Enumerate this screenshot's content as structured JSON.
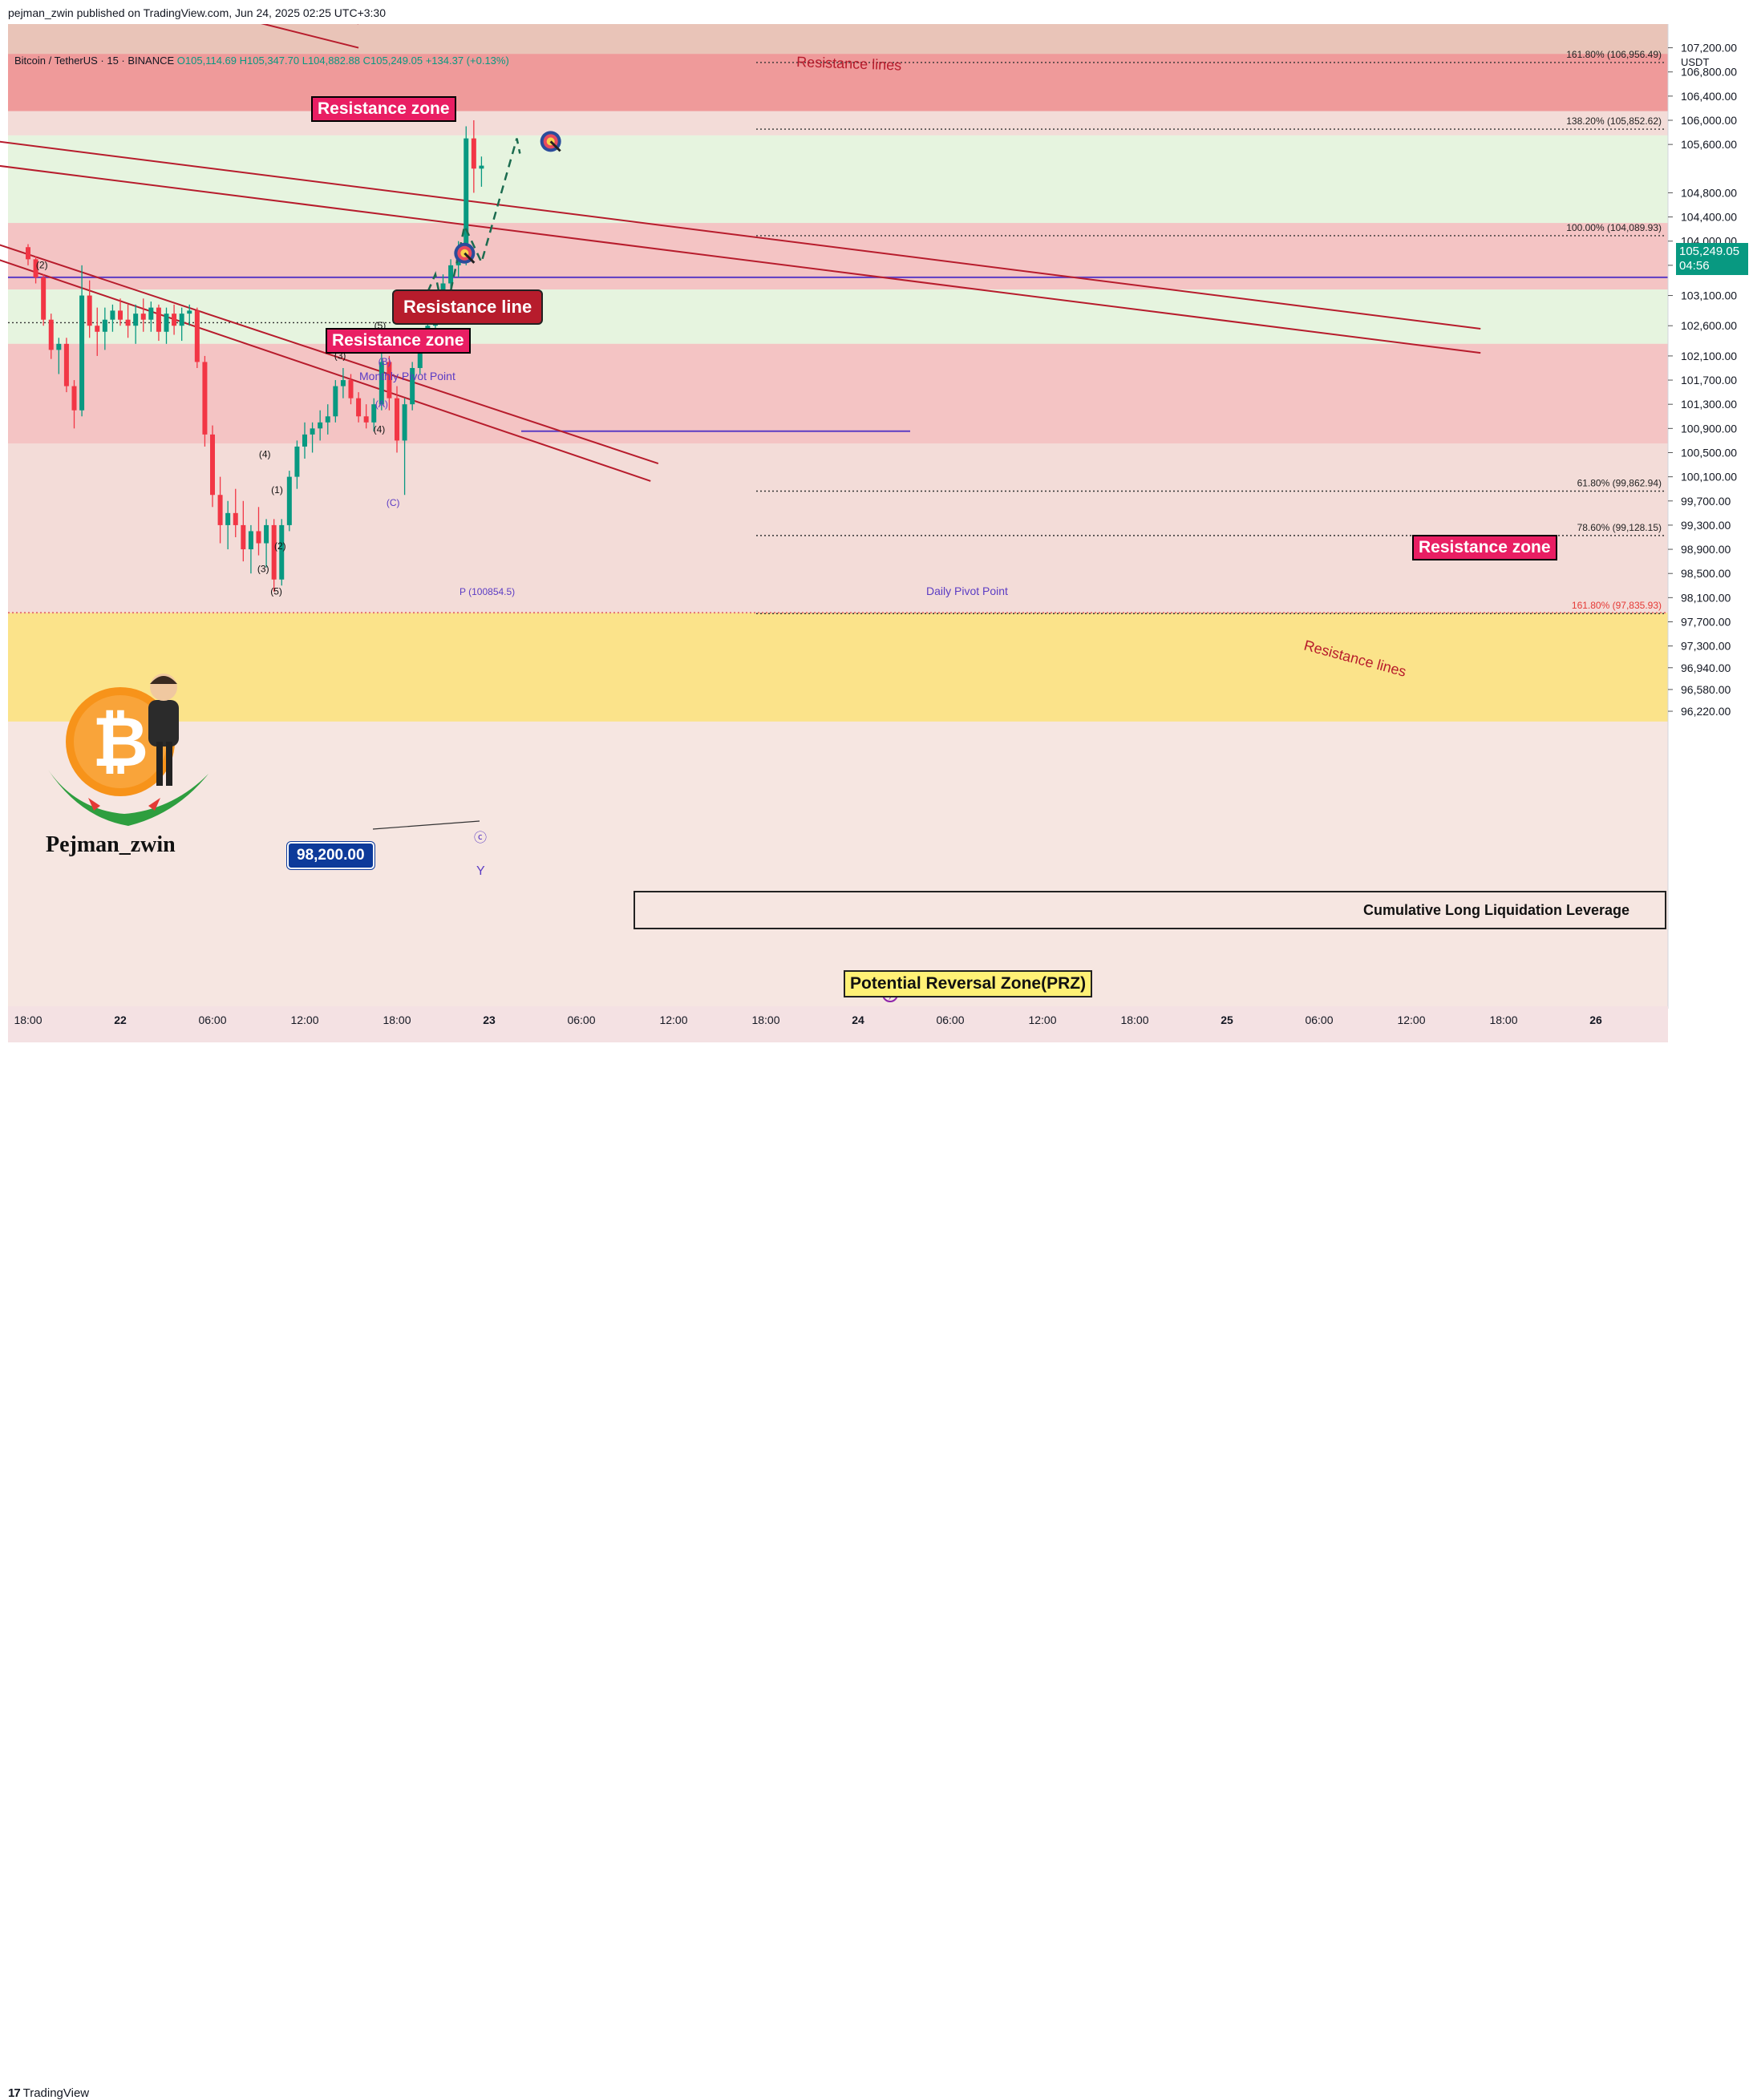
{
  "header": {
    "published": "pejman_zwin published on TradingView.com, Jun 24, 2025 02:25 UTC+3:30"
  },
  "legend": {
    "symbol": "Bitcoin / TetherUS · 15 · BINANCE",
    "open": "O105,114.69",
    "high": "H105,347.70",
    "low": "L104,882.88",
    "close": "C105,249.05",
    "change": "+134.37 (+0.13%)"
  },
  "axis": {
    "currency": "USDT",
    "price_ticks": [
      "107,200.00",
      "106,800.00",
      "106,400.00",
      "106,000.00",
      "105,600.00",
      "104,800.00",
      "104,400.00",
      "104,000.00",
      "103,600.00",
      "103,100.00",
      "102,600.00",
      "102,100.00",
      "101,700.00",
      "101,300.00",
      "100,900.00",
      "100,500.00",
      "100,100.00",
      "99,700.00",
      "99,300.00",
      "98,900.00",
      "98,500.00",
      "98,100.00",
      "97,700.00",
      "97,300.00",
      "96,940.00",
      "96,580.00",
      "96,220.00"
    ],
    "time_ticks": [
      "18:00",
      "22",
      "06:00",
      "12:00",
      "18:00",
      "23",
      "06:00",
      "12:00",
      "18:00",
      "24",
      "06:00",
      "12:00",
      "18:00",
      "25",
      "06:00",
      "12:00",
      "18:00",
      "26"
    ]
  },
  "last_price": {
    "value": "105,249.05",
    "countdown": "04:56"
  },
  "annotations": {
    "resistance_zone_top": "Resistance zone",
    "resistance_zone_mid": "Resistance zone",
    "resistance_zone_right": "Resistance zone",
    "resistance_line_box": "Resistance line",
    "resistance_lines_top": "Resistance lines",
    "resistance_lines_bottom": "Resistance lines",
    "monthly_pivot": "Monthly Pivot Point",
    "daily_pivot": "Daily Pivot Point",
    "daily_pivot_value": "P (100854.5)",
    "price_tag": "98,200.00",
    "cumulative": "Cumulative Long Liquidation Leverage",
    "prz": "Potential Reversal Zone(PRZ)",
    "author": "Pejman_zwin",
    "bitcoin_symbol": "₿",
    "footer": "TradingView",
    "footer_mark": "17",
    "wave_y": "Y",
    "wave_c_circle": "ⓒ"
  },
  "fib_labels": [
    {
      "label": "161.80% (106,956.49)",
      "price": 106956.49
    },
    {
      "label": "138.20% (105,852.62)",
      "price": 105852.62
    },
    {
      "label": "100.00% (104,089.93)",
      "price": 104089.93
    },
    {
      "label": "61.80% (99,862.94)",
      "price": 99862.94
    },
    {
      "label": "78.60% (99,128.15)",
      "price": 99128.15
    },
    {
      "label": "161.80% (97,835.93)",
      "price": 97835.93
    }
  ],
  "wave_labels": [
    {
      "text": "(1)",
      "price": 100800,
      "t": -9
    },
    {
      "text": "(2)",
      "price": 103550,
      "t": -5.1
    },
    {
      "text": "(4)",
      "price": 100420,
      "t": 9.4
    },
    {
      "text": "(3)",
      "price": 98520,
      "t": 9.3
    },
    {
      "text": "(1)",
      "price": 99830,
      "t": 10.2
    },
    {
      "text": "(2)",
      "price": 98900,
      "t": 10.4
    },
    {
      "text": "(5)",
      "price": 98150,
      "t": 10.15
    },
    {
      "text": "(3)",
      "price": 102050,
      "t": 14.3
    },
    {
      "text": "(5)",
      "price": 102550,
      "t": 16.9
    },
    {
      "text": "(4)",
      "price": 100830,
      "t": 16.85
    },
    {
      "text": "(B)",
      "price": 101950,
      "t": 17.2
    },
    {
      "text": "(A)",
      "price": 101250,
      "t": 17.0
    },
    {
      "text": "(C)",
      "price": 99620,
      "t": 17.75
    }
  ],
  "colors": {
    "up": "#089981",
    "down": "#f23645",
    "resistance_line": "#b71c2c",
    "pivot": "#5b3cc4",
    "zone_red": "#ef9a9a",
    "zone_pink": "#f4c4c4",
    "zone_green": "#e6f4df",
    "zone_yellow": "#fbe38a"
  },
  "chart_data": {
    "type": "candlestick",
    "x_unit": "hours from Jun 22 00:00",
    "zones": [
      {
        "from": 107100,
        "to": 106150,
        "kind": "resistance"
      },
      {
        "from": 106150,
        "to": 105750,
        "kind": "light"
      },
      {
        "from": 105750,
        "to": 104300,
        "kind": "green"
      },
      {
        "from": 104300,
        "to": 103200,
        "kind": "resistance-light"
      },
      {
        "from": 103200,
        "to": 102300,
        "kind": "green"
      },
      {
        "from": 102300,
        "to": 100650,
        "kind": "resistance-light"
      },
      {
        "from": 100650,
        "to": 97850,
        "kind": "light"
      },
      {
        "from": 97850,
        "to": 96050,
        "kind": "prz"
      }
    ],
    "pivots": {
      "monthly": 103400,
      "daily": 100854.5
    },
    "projection": [
      {
        "t": 19.3,
        "p": 102750
      },
      {
        "t": 20.5,
        "p": 103450
      },
      {
        "t": 21.1,
        "p": 102700
      },
      {
        "t": 22.4,
        "p": 104250
      },
      {
        "t": 23.5,
        "p": 103650
      },
      {
        "t": 25.8,
        "p": 105700
      },
      {
        "t": 26.0,
        "p": 105450
      }
    ],
    "targets": [
      {
        "t": 22.4,
        "p": 103800
      },
      {
        "t": 28.0,
        "p": 105650
      }
    ],
    "candles_ohlc_hourly": [
      [
        -6,
        103900,
        103950,
        103600,
        103700
      ],
      [
        -5.5,
        103700,
        103750,
        103300,
        103400
      ],
      [
        -5,
        103400,
        103450,
        102600,
        102700
      ],
      [
        -4.5,
        102700,
        102800,
        102050,
        102200
      ],
      [
        -4,
        102200,
        102400,
        101800,
        102300
      ],
      [
        -3.5,
        102300,
        102400,
        101500,
        101600
      ],
      [
        -3,
        101600,
        101700,
        100900,
        101200
      ],
      [
        -2.5,
        101200,
        103600,
        101100,
        103100
      ],
      [
        -2,
        103100,
        103350,
        102400,
        102600
      ],
      [
        -1.5,
        102600,
        102900,
        102100,
        102500
      ],
      [
        -1,
        102500,
        102900,
        102200,
        102700
      ],
      [
        -0.5,
        102700,
        102950,
        102500,
        102850
      ],
      [
        0,
        102850,
        103050,
        102600,
        102700
      ],
      [
        0.5,
        102700,
        102950,
        102400,
        102600
      ],
      [
        1,
        102600,
        102950,
        102300,
        102800
      ],
      [
        1.5,
        102800,
        103050,
        102500,
        102700
      ],
      [
        2,
        102700,
        103000,
        102500,
        102900
      ],
      [
        2.5,
        102900,
        102950,
        102350,
        102500
      ],
      [
        3,
        102500,
        102900,
        102300,
        102800
      ],
      [
        3.5,
        102800,
        102950,
        102450,
        102600
      ],
      [
        4,
        102600,
        102900,
        102350,
        102800
      ],
      [
        4.5,
        102800,
        102950,
        102600,
        102850
      ],
      [
        5,
        102850,
        102900,
        101900,
        102000
      ],
      [
        5.5,
        102000,
        102100,
        100600,
        100800
      ],
      [
        6,
        100800,
        100950,
        99600,
        99800
      ],
      [
        6.5,
        99800,
        100100,
        99000,
        99300
      ],
      [
        7,
        99300,
        99700,
        98900,
        99500
      ],
      [
        7.5,
        99500,
        99900,
        99100,
        99300
      ],
      [
        8,
        99300,
        99700,
        98700,
        98900
      ],
      [
        8.5,
        98900,
        99300,
        98500,
        99200
      ],
      [
        9,
        99200,
        99600,
        98800,
        99000
      ],
      [
        9.5,
        99000,
        99400,
        98600,
        99300
      ],
      [
        10,
        99300,
        99400,
        98200,
        98400
      ],
      [
        10.5,
        98400,
        99400,
        98300,
        99300
      ],
      [
        11,
        99300,
        100200,
        99200,
        100100
      ],
      [
        11.5,
        100100,
        100700,
        99900,
        100600
      ],
      [
        12,
        100600,
        101000,
        100400,
        100800
      ],
      [
        12.5,
        100800,
        101000,
        100500,
        100900
      ],
      [
        13,
        100900,
        101200,
        100700,
        101000
      ],
      [
        13.5,
        101000,
        101300,
        100800,
        101100
      ],
      [
        14,
        101100,
        101700,
        101000,
        101600
      ],
      [
        14.5,
        101600,
        101900,
        101400,
        101700
      ],
      [
        15,
        101700,
        101800,
        101300,
        101400
      ],
      [
        15.5,
        101400,
        101500,
        101000,
        101100
      ],
      [
        16,
        101100,
        101300,
        100900,
        101000
      ],
      [
        16.5,
        101000,
        101400,
        100850,
        101300
      ],
      [
        17,
        101300,
        102300,
        101200,
        102000
      ],
      [
        17.5,
        102000,
        102100,
        101200,
        101400
      ],
      [
        18,
        101400,
        101600,
        100500,
        100700
      ],
      [
        18.5,
        100700,
        101400,
        99800,
        101300
      ],
      [
        19,
        101300,
        102000,
        101200,
        101900
      ],
      [
        19.5,
        101900,
        102500,
        101800,
        102400
      ],
      [
        20,
        102400,
        102700,
        102200,
        102600
      ],
      [
        20.5,
        102600,
        103200,
        102500,
        103100
      ],
      [
        21,
        103100,
        103450,
        102900,
        103300
      ],
      [
        21.5,
        103300,
        103700,
        103100,
        103600
      ],
      [
        22,
        103600,
        104000,
        103400,
        103700
      ],
      [
        22.5,
        103700,
        105900,
        103600,
        105700
      ],
      [
        23,
        105700,
        106000,
        104800,
        105200
      ],
      [
        23.5,
        105200,
        105400,
        104900,
        105249
      ]
    ]
  }
}
